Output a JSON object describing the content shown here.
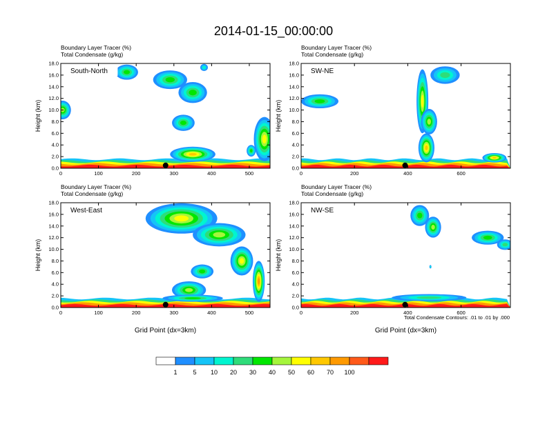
{
  "title": "2014-01-15_00:00:00",
  "colors": {
    "axis": "#000000",
    "terrain_dot": "#000000",
    "background": "#ffffff"
  },
  "colorbar": {
    "labels": [
      "1",
      "5",
      "10",
      "20",
      "30",
      "40",
      "50",
      "60",
      "70",
      "100"
    ],
    "colors": [
      "#ffffff",
      "#1f8fff",
      "#15c4f7",
      "#00f5d0",
      "#2fdc7a",
      "#00e700",
      "#a5f53c",
      "#ffff00",
      "#ffc800",
      "#ff9a00",
      "#ff5a1a",
      "#ff1a1a"
    ]
  },
  "footnote": "Total Condensate Contours: .01 to .01 by .000",
  "chart_data": [
    {
      "type": "heatmap",
      "id": "south-north",
      "panel_label": "South-North",
      "subtitle_line1": "Boundary Layer Tracer   (%)",
      "subtitle_line2": "Total Condensate   (g/kg)",
      "ylabel": "Height (km)",
      "xlabel": "",
      "xlim": [
        0,
        555
      ],
      "ylim": [
        0,
        18
      ],
      "xticks": [
        "0",
        "100",
        "200",
        "300",
        "400",
        "500"
      ],
      "xtick_values": [
        0,
        100,
        200,
        300,
        400,
        500
      ],
      "yticks": [
        "0.0",
        "2.0",
        "4.0",
        "6.0",
        "8.0",
        "10.0",
        "12.0",
        "14.0",
        "16.0",
        "18.0"
      ],
      "ytick_values": [
        0,
        2,
        4,
        6,
        8,
        10,
        12,
        14,
        16,
        18
      ],
      "marker_x": 278,
      "clouds": [
        {
          "x": 5,
          "y": 10.0,
          "rx": 22,
          "ry": 1.6,
          "v": 6
        },
        {
          "x": 175,
          "y": 16.5,
          "rx": 30,
          "ry": 1.3,
          "v": 5
        },
        {
          "x": 290,
          "y": 15.2,
          "rx": 45,
          "ry": 1.6,
          "v": 5
        },
        {
          "x": 350,
          "y": 13.0,
          "rx": 38,
          "ry": 1.8,
          "v": 5
        },
        {
          "x": 380,
          "y": 17.3,
          "rx": 10,
          "ry": 0.6,
          "v": 3
        },
        {
          "x": 325,
          "y": 7.8,
          "rx": 30,
          "ry": 1.4,
          "v": 5
        },
        {
          "x": 350,
          "y": 2.4,
          "rx": 60,
          "ry": 1.3,
          "v": 8
        },
        {
          "x": 540,
          "y": 5.0,
          "rx": 28,
          "ry": 3.8,
          "v": 7
        },
        {
          "x": 505,
          "y": 3.0,
          "rx": 12,
          "ry": 1.0,
          "v": 5
        }
      ]
    },
    {
      "type": "heatmap",
      "id": "sw-ne",
      "panel_label": "SW-NE",
      "subtitle_line1": "Boundary Layer Tracer   (%)",
      "subtitle_line2": "Total Condensate   (g/kg)",
      "ylabel": "Height (km)",
      "xlabel": "",
      "xlim": [
        0,
        785
      ],
      "ylim": [
        0,
        18
      ],
      "xticks": [
        "0",
        "200",
        "400",
        "600"
      ],
      "xtick_values": [
        0,
        200,
        400,
        600
      ],
      "yticks": [
        "0.0",
        "2.0",
        "4.0",
        "6.0",
        "8.0",
        "10.0",
        "12.0",
        "14.0",
        "16.0",
        "18.0"
      ],
      "ytick_values": [
        0,
        2,
        4,
        6,
        8,
        10,
        12,
        14,
        16,
        18
      ],
      "marker_x": 390,
      "clouds": [
        {
          "x": 70,
          "y": 11.5,
          "rx": 70,
          "ry": 1.2,
          "v": 5
        },
        {
          "x": 540,
          "y": 16.0,
          "rx": 55,
          "ry": 1.5,
          "v": 4
        },
        {
          "x": 455,
          "y": 11.5,
          "rx": 22,
          "ry": 5.5,
          "v": 7
        },
        {
          "x": 480,
          "y": 8.0,
          "rx": 30,
          "ry": 2.2,
          "v": 6
        },
        {
          "x": 470,
          "y": 3.5,
          "rx": 30,
          "ry": 2.5,
          "v": 8
        },
        {
          "x": 725,
          "y": 1.8,
          "rx": 45,
          "ry": 0.8,
          "v": 8
        }
      ]
    },
    {
      "type": "heatmap",
      "id": "west-east",
      "panel_label": "West-East",
      "subtitle_line1": "Boundary Layer Tracer   (%)",
      "subtitle_line2": "Total Condensate   (g/kg)",
      "ylabel": "Height (km)",
      "xlabel": "Grid Point (dx=3km)",
      "xlim": [
        0,
        555
      ],
      "ylim": [
        0,
        18
      ],
      "xticks": [
        "0",
        "100",
        "200",
        "300",
        "400",
        "500"
      ],
      "xtick_values": [
        0,
        100,
        200,
        300,
        400,
        500
      ],
      "yticks": [
        "0.0",
        "2.0",
        "4.0",
        "6.0",
        "8.0",
        "10.0",
        "12.0",
        "14.0",
        "16.0",
        "18.0"
      ],
      "ytick_values": [
        0,
        2,
        4,
        6,
        8,
        10,
        12,
        14,
        16,
        18
      ],
      "marker_x": 278,
      "clouds": [
        {
          "x": 320,
          "y": 15.3,
          "rx": 95,
          "ry": 2.6,
          "v": 7
        },
        {
          "x": 420,
          "y": 12.5,
          "rx": 70,
          "ry": 2.0,
          "v": 6
        },
        {
          "x": 480,
          "y": 8.0,
          "rx": 30,
          "ry": 2.5,
          "v": 7
        },
        {
          "x": 375,
          "y": 6.2,
          "rx": 30,
          "ry": 1.2,
          "v": 5
        },
        {
          "x": 340,
          "y": 3.0,
          "rx": 45,
          "ry": 1.5,
          "v": 6
        },
        {
          "x": 525,
          "y": 4.5,
          "rx": 16,
          "ry": 3.5,
          "v": 9
        },
        {
          "x": 350,
          "y": 1.6,
          "rx": 80,
          "ry": 0.6,
          "v": 5
        }
      ]
    },
    {
      "type": "heatmap",
      "id": "nw-se",
      "panel_label": "NW-SE",
      "subtitle_line1": "Boundary Layer Tracer   (%)",
      "subtitle_line2": "Total Condensate   (g/kg)",
      "ylabel": "Height (km)",
      "xlabel": "Grid Point (dx=3km)",
      "xlim": [
        0,
        785
      ],
      "ylim": [
        0,
        18
      ],
      "xticks": [
        "0",
        "200",
        "400",
        "600"
      ],
      "xtick_values": [
        0,
        200,
        400,
        600
      ],
      "yticks": [
        "0.0",
        "2.0",
        "4.0",
        "6.0",
        "8.0",
        "10.0",
        "12.0",
        "14.0",
        "16.0",
        "18.0"
      ],
      "ytick_values": [
        0,
        2,
        4,
        6,
        8,
        10,
        12,
        14,
        16,
        18
      ],
      "marker_x": 390,
      "clouds": [
        {
          "x": 445,
          "y": 15.8,
          "rx": 35,
          "ry": 1.8,
          "v": 5
        },
        {
          "x": 495,
          "y": 13.8,
          "rx": 30,
          "ry": 1.8,
          "v": 6
        },
        {
          "x": 700,
          "y": 12.0,
          "rx": 60,
          "ry": 1.2,
          "v": 5
        },
        {
          "x": 765,
          "y": 10.8,
          "rx": 30,
          "ry": 0.9,
          "v": 4
        },
        {
          "x": 485,
          "y": 7.0,
          "rx": 4,
          "ry": 0.3,
          "v": 3
        },
        {
          "x": 480,
          "y": 1.7,
          "rx": 140,
          "ry": 0.6,
          "v": 4
        }
      ]
    }
  ]
}
